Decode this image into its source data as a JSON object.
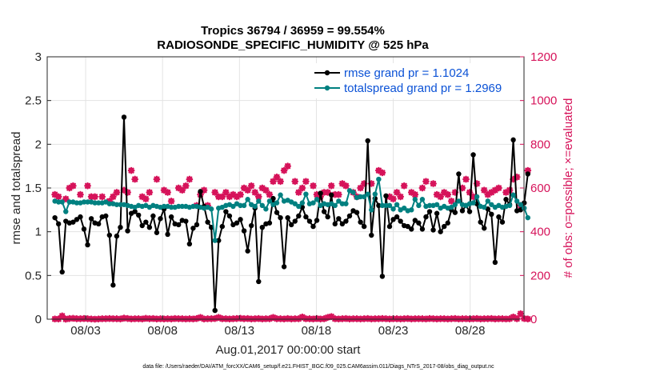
{
  "chart_data": {
    "type": "line",
    "title_line1": "Tropics 36794 / 36959 = 99.554%",
    "title_line2": "RADIOSONDE_SPECIFIC_HUMIDITY @ 525 hPa",
    "xlabel": "Aug.01,2017 00:00:00 start",
    "ylabel_left": "rmse and totalspread",
    "ylabel_right": "# of obs: o=possible; ×=evaluated",
    "footer": "data file: /Users/raeder/DAI/ATM_forcXX/CAM6_setup/f.e21.FHIST_BGC.f09_025.CAM6assim.011/Diags_NTrS_2017-08/obs_diag_output.nc",
    "xlim": [
      0.5,
      31.5
    ],
    "ylim_left": [
      0,
      3
    ],
    "ylim_right": [
      0,
      1200
    ],
    "x_ticks": [
      {
        "x": 3,
        "label": "08/03"
      },
      {
        "x": 8,
        "label": "08/08"
      },
      {
        "x": 13,
        "label": "08/13"
      },
      {
        "x": 18,
        "label": "08/18"
      },
      {
        "x": 23,
        "label": "08/23"
      },
      {
        "x": 28,
        "label": "08/28"
      }
    ],
    "y_ticks_left": [
      {
        "v": 0,
        "label": "0"
      },
      {
        "v": 0.5,
        "label": "0.5"
      },
      {
        "v": 1,
        "label": "1"
      },
      {
        "v": 1.5,
        "label": "1.5"
      },
      {
        "v": 2,
        "label": "2"
      },
      {
        "v": 2.5,
        "label": "2.5"
      },
      {
        "v": 3,
        "label": "3"
      }
    ],
    "y_ticks_right": [
      {
        "v": 0,
        "label": "0"
      },
      {
        "v": 200,
        "label": "200"
      },
      {
        "v": 400,
        "label": "400"
      },
      {
        "v": 600,
        "label": "600"
      },
      {
        "v": 800,
        "label": "800"
      },
      {
        "v": 1000,
        "label": "1000"
      },
      {
        "v": 1200,
        "label": "1200"
      }
    ],
    "series": [
      {
        "name": "rmse",
        "legend": "rmse grand pr = 1.1024",
        "color": "#000000",
        "values": [
          1.16,
          1.09,
          0.54,
          1.12,
          1.1,
          1.11,
          1.14,
          1.17,
          1.03,
          0.85,
          1.15,
          1.1,
          1.09,
          1.17,
          1.18,
          0.96,
          0.39,
          0.95,
          1.05,
          2.31,
          1.01,
          1.21,
          1.23,
          1.19,
          1.07,
          1.11,
          1.05,
          1.18,
          0.99,
          1.15,
          1.26,
          0.97,
          1.17,
          1.09,
          1.08,
          1.13,
          1.12,
          0.86,
          1.04,
          1.08,
          1.46,
          1.29,
          1.11,
          1.05,
          0.1,
          0.9,
          1.06,
          1.23,
          1.18,
          1.08,
          1.1,
          1.14,
          1.01,
          0.78,
          1.07,
          1.27,
          0.43,
          1.05,
          1.09,
          1.1,
          1.38,
          1.22,
          1.16,
          0.6,
          1.16,
          1.08,
          1.12,
          1.18,
          1.28,
          1.17,
          1.12,
          1.06,
          1.13,
          1.44,
          1.23,
          1.17,
          1.42,
          1.09,
          1.15,
          1.09,
          1.12,
          1.18,
          1.24,
          1.22,
          1.11,
          1.06,
          2.04,
          0.96,
          1.38,
          1.3,
          0.49,
          1.41,
          1.06,
          1.14,
          1.17,
          1.12,
          1.07,
          1.06,
          1.03,
          1.13,
          1.1,
          1.03,
          1.17,
          1.23,
          1.02,
          1.21,
          1.0,
          1.06,
          1.1,
          1.25,
          1.22,
          1.66,
          1.24,
          1.3,
          1.23,
          1.88,
          1.32,
          1.11,
          1.04,
          1.26,
          1.2,
          0.65,
          1.17,
          1.11,
          1.37,
          1.31,
          2.05,
          1.24,
          1.25,
          1.33,
          1.66
        ]
      },
      {
        "name": "totalspread",
        "legend": "totalspread grand pr = 1.2969",
        "color": "#008080",
        "values": [
          1.35,
          1.34,
          1.34,
          1.23,
          1.34,
          1.34,
          1.33,
          1.33,
          1.34,
          1.34,
          1.34,
          1.33,
          1.33,
          1.33,
          1.34,
          1.32,
          1.32,
          1.31,
          1.31,
          1.31,
          1.3,
          1.29,
          1.28,
          1.3,
          1.29,
          1.3,
          1.28,
          1.3,
          1.29,
          1.28,
          1.29,
          1.29,
          1.28,
          1.28,
          1.29,
          1.29,
          1.29,
          1.28,
          1.29,
          1.29,
          1.28,
          1.27,
          1.28,
          1.26,
          0.9,
          1.27,
          1.28,
          1.3,
          1.31,
          1.29,
          1.32,
          1.3,
          1.3,
          1.37,
          1.31,
          1.29,
          1.35,
          1.3,
          1.26,
          1.35,
          1.31,
          1.33,
          1.42,
          1.35,
          1.36,
          1.34,
          1.32,
          1.29,
          1.33,
          1.43,
          1.32,
          1.33,
          1.37,
          1.3,
          1.32,
          1.31,
          1.32,
          1.3,
          1.35,
          1.32,
          1.32,
          1.47,
          1.45,
          1.39,
          1.4,
          1.4,
          1.43,
          1.25,
          1.43,
          1.6,
          1.3,
          1.3,
          1.3,
          1.26,
          1.31,
          1.25,
          1.27,
          1.24,
          1.25,
          1.37,
          1.3,
          1.37,
          1.29,
          1.3,
          1.3,
          1.31,
          1.27,
          1.29,
          1.27,
          1.28,
          1.31,
          1.35,
          1.31,
          1.3,
          1.32,
          1.33,
          1.4,
          1.29,
          1.28,
          1.35,
          1.31,
          1.28,
          1.3,
          1.28,
          1.29,
          1.3,
          1.42,
          1.35,
          1.31,
          1.27,
          1.16
        ]
      }
    ],
    "obs_evaluated": {
      "name": "# of obs evaluated",
      "color": "#d6135a",
      "values": [
        570,
        560,
        null,
        550,
        600,
        610,
        null,
        570,
        null,
        610,
        560,
        560,
        null,
        560,
        null,
        540,
        560,
        580,
        null,
        590,
        580,
        680,
        640,
        null,
        560,
        550,
        580,
        null,
        640,
        null,
        590,
        580,
        540,
        null,
        600,
        590,
        610,
        640,
        null,
        520,
        570,
        590,
        520,
        null,
        580,
        560,
        560,
        580,
        560,
        570,
        560,
        570,
        600,
        590,
        610,
        580,
        560,
        600,
        590,
        570,
        630,
        650,
        630,
        680,
        700,
        null,
        630,
        580,
        600,
        630,
        null,
        610,
        570,
        560,
        580,
        580,
        610,
        570,
        570,
        620,
        610,
        null,
        580,
        560,
        600,
        620,
        null,
        620,
        null,
        680,
        670,
        null,
        560,
        550,
        580,
        560,
        610,
        null,
        580,
        570,
        null,
        600,
        630,
        null,
        620,
        570,
        560,
        580,
        570,
        540,
        580,
        null,
        600,
        640,
        580,
        560,
        620,
        null,
        590,
        570,
        580,
        590,
        600,
        null,
        580,
        590,
        640,
        650,
        520,
        null,
        680
      ]
    },
    "obs_possible": {
      "name": "# of obs possible",
      "color": "#d6135a",
      "values": [
        1,
        1,
        15,
        0,
        3,
        4,
        2,
        2,
        3,
        2,
        1,
        0,
        1,
        2,
        2,
        3,
        2,
        2,
        1,
        5,
        3,
        1,
        2,
        2,
        1,
        4,
        2,
        3,
        1,
        2,
        1,
        2,
        1,
        3,
        2,
        2,
        1,
        2,
        1,
        3,
        8,
        1,
        2,
        2,
        3,
        8,
        2,
        2,
        1,
        2,
        3,
        4,
        2,
        3,
        1,
        2,
        3,
        1,
        2,
        2,
        8,
        2,
        2,
        1,
        3,
        1,
        2,
        2,
        10,
        2,
        2,
        1,
        3,
        1,
        2,
        8,
        12,
        2,
        1,
        2,
        3,
        1,
        2,
        2,
        1,
        2,
        3,
        1,
        2,
        2,
        3,
        2,
        1,
        2,
        2,
        1,
        2,
        3,
        1,
        2,
        2,
        2,
        1,
        3,
        2,
        1,
        2,
        2,
        1,
        2,
        3,
        1,
        2,
        2,
        1,
        2,
        3,
        1,
        2,
        2,
        3,
        1,
        2,
        2,
        1,
        2,
        10,
        2,
        25,
        3,
        1
      ]
    }
  }
}
